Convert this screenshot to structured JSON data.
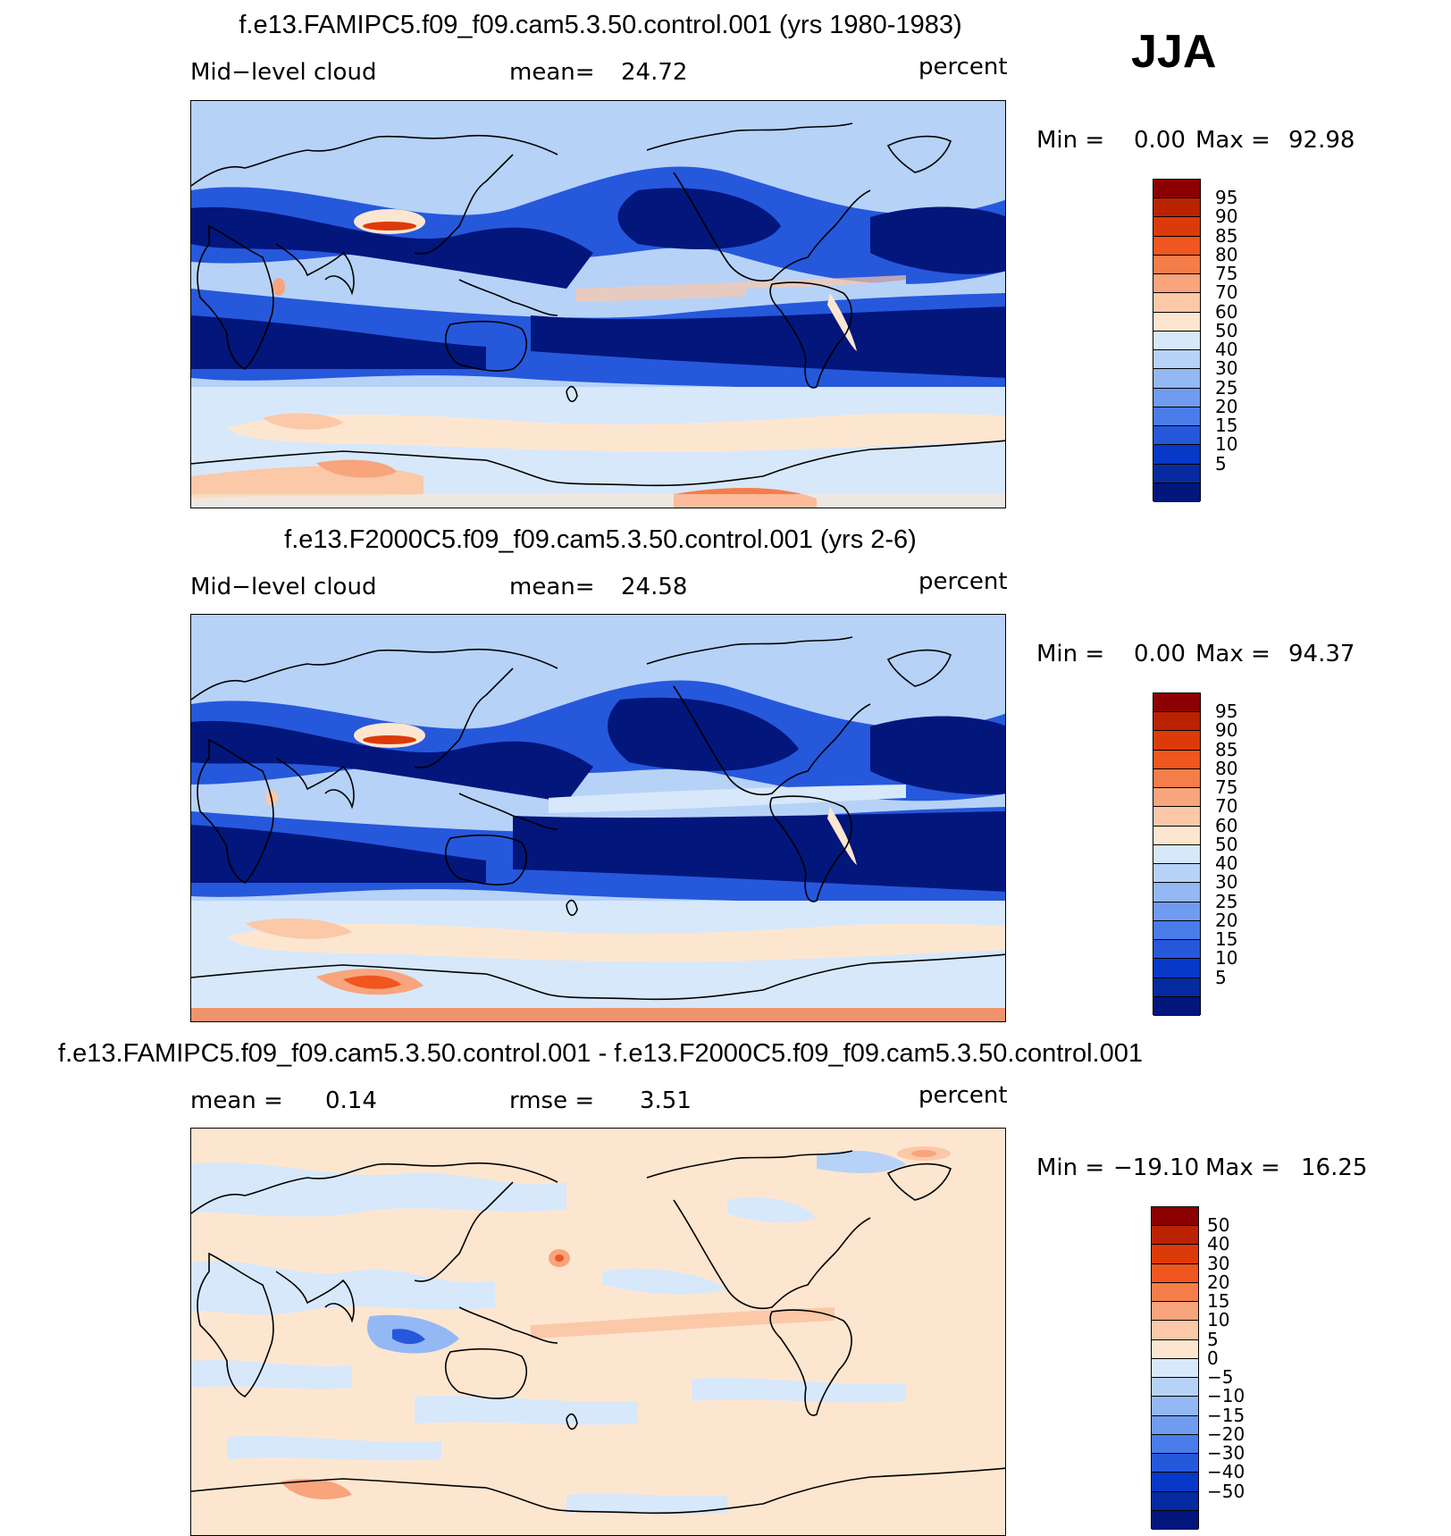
{
  "season": "JJA",
  "panels": [
    {
      "title": "f.e13.FAMIPC5.f09_f09.cam5.3.50.control.001 (yrs 1980-1983)",
      "left_label": "Mid−level cloud",
      "mid_label": "mean=",
      "mid_value": "24.72",
      "units": "percent",
      "min_label": "Min =",
      "min_value": "0.00",
      "max_label": "Max =",
      "max_value": "92.98",
      "colorbar_ticks": [
        "95",
        "90",
        "85",
        "80",
        "75",
        "70",
        "60",
        "50",
        "40",
        "30",
        "25",
        "20",
        "15",
        "10",
        "5"
      ]
    },
    {
      "title": "f.e13.F2000C5.f09_f09.cam5.3.50.control.001 (yrs 2-6)",
      "left_label": "Mid−level cloud",
      "mid_label": "mean=",
      "mid_value": "24.58",
      "units": "percent",
      "min_label": "Min =",
      "min_value": "0.00",
      "max_label": "Max =",
      "max_value": "94.37",
      "colorbar_ticks": [
        "95",
        "90",
        "85",
        "80",
        "75",
        "70",
        "60",
        "50",
        "40",
        "30",
        "25",
        "20",
        "15",
        "10",
        "5"
      ]
    },
    {
      "title": "f.e13.FAMIPC5.f09_f09.cam5.3.50.control.001 - f.e13.F2000C5.f09_f09.cam5.3.50.control.001",
      "left_label": "mean =",
      "left_value": "0.14",
      "mid_label": "rmse =",
      "mid_value": "3.51",
      "units": "percent",
      "min_label": "Min =",
      "min_value": "−19.10",
      "max_label": "Max =",
      "max_value": "16.25",
      "colorbar_ticks": [
        "50",
        "40",
        "30",
        "20",
        "15",
        "10",
        "5",
        "0",
        "−5",
        "−10",
        "−15",
        "−20",
        "−30",
        "−40",
        "−50"
      ]
    }
  ],
  "colorbar_colors": [
    "#8b0000",
    "#bb2200",
    "#dd3a0a",
    "#f0561e",
    "#f57d4a",
    "#f8a47c",
    "#fbc8a8",
    "#fde6d0",
    "#d7e8fb",
    "#b7d2f7",
    "#94b8f3",
    "#6f9cf0",
    "#4a7cea",
    "#2658dc",
    "#0838c8",
    "#062aa0",
    "#02167c"
  ],
  "map_colors": {
    "ocean_light": "#b7d2f7",
    "deep_blue": "#02167c",
    "mid_blue": "#2658dc",
    "pale": "#d7e8fb",
    "peach": "#fbc8a8",
    "orange": "#f0561e",
    "diff_pos": "#fde6d0",
    "diff_neg": "#d7e8fb"
  }
}
